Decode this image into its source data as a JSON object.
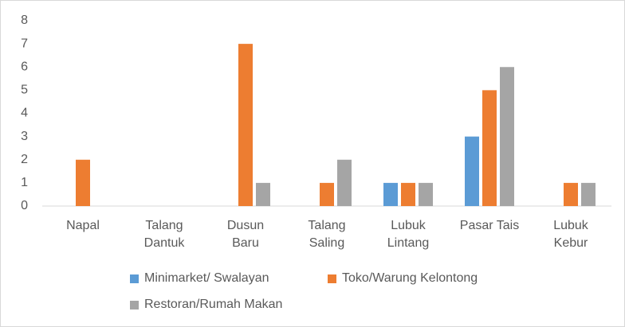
{
  "chart_data": {
    "type": "bar",
    "categories": [
      "Napal",
      "Talang Dantuk",
      "Dusun Baru",
      "Talang Saling",
      "Lubuk Lintang",
      "Pasar Tais",
      "Lubuk Kebur"
    ],
    "series": [
      {
        "name": "Minimarket/ Swalayan",
        "color": "#5b9bd5",
        "values": [
          0,
          0,
          0,
          0,
          1,
          3,
          0
        ]
      },
      {
        "name": "Toko/Warung Kelontong",
        "color": "#ed7d31",
        "values": [
          2,
          0,
          7,
          1,
          1,
          5,
          1
        ]
      },
      {
        "name": "Restoran/Rumah Makan",
        "color": "#a5a5a5",
        "values": [
          0,
          0,
          1,
          2,
          1,
          6,
          1
        ]
      }
    ],
    "ylim": [
      0,
      8
    ],
    "yticks": [
      0,
      1,
      2,
      3,
      4,
      5,
      6,
      7,
      8
    ],
    "grid": false,
    "legend": "bottom"
  }
}
